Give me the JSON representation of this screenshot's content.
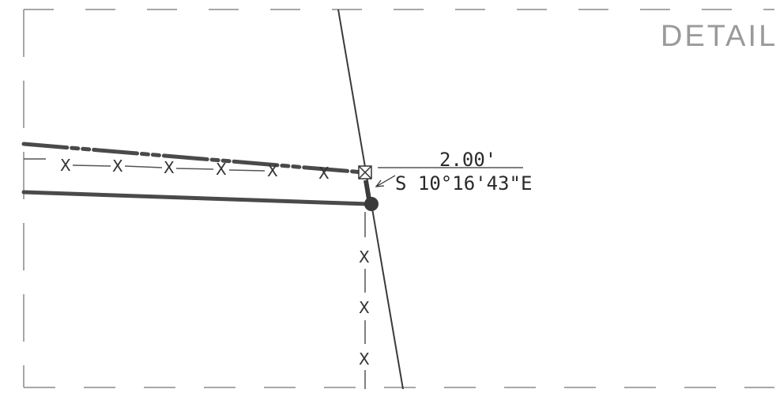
{
  "detail": {
    "title": "DETAIL"
  },
  "callout": {
    "distance": "2.00'",
    "bearing": "S 10°16'43\"E"
  },
  "fence_marker": "X",
  "colors": {
    "line": "#4a4a4a",
    "dashed": "#8a8a8a",
    "background": "#ffffff"
  }
}
